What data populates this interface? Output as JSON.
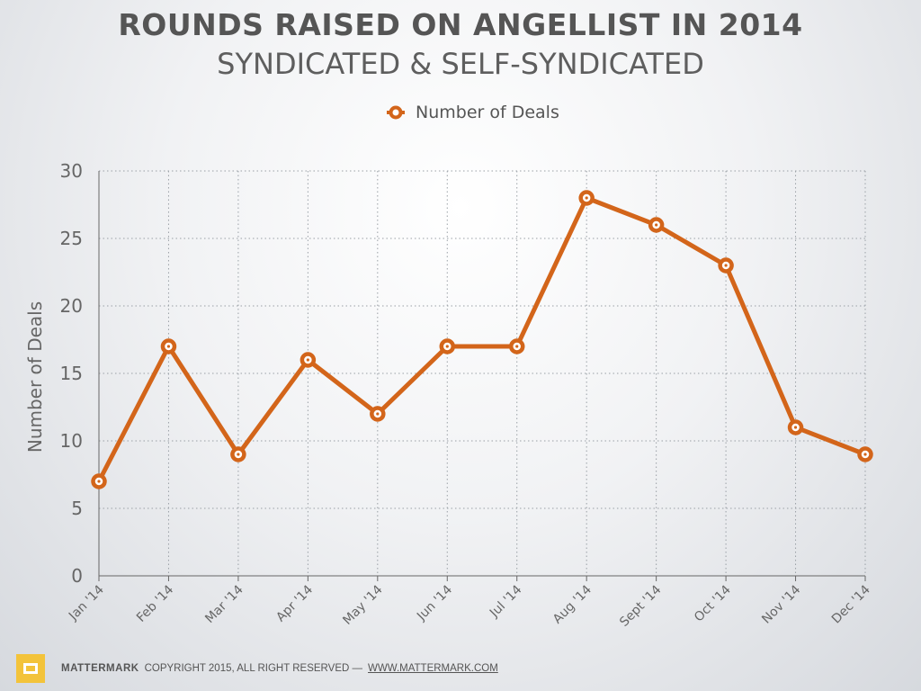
{
  "title": "ROUNDS RAISED ON ANGELLIST IN 2014",
  "subtitle": "SYNDICATED & SELF-SYNDICATED",
  "legend": {
    "label": "Number of Deals"
  },
  "colors": {
    "series": "#d3651a",
    "grid": "#9aa0a6",
    "axis": "#666666"
  },
  "chart_data": {
    "type": "line",
    "categories": [
      "Jan '14",
      "Feb '14",
      "Mar '14",
      "Apr '14",
      "May '14",
      "Jun '14",
      "Jul '14",
      "Aug '14",
      "Sept '14",
      "Oct '14",
      "Nov '14",
      "Dec '14"
    ],
    "series": [
      {
        "name": "Number of Deals",
        "values": [
          7,
          17,
          9,
          16,
          12,
          17,
          17,
          28,
          26,
          23,
          11,
          9
        ]
      }
    ],
    "ylabel": "Number of Deals",
    "ylim": [
      0,
      30
    ],
    "yticks": [
      0,
      5,
      10,
      15,
      20,
      25,
      30
    ],
    "grid": true,
    "legend_position": "top-center"
  },
  "footer": {
    "brand": "MATTERMARK",
    "copyright": "COPYRIGHT 2015, ALL RIGHT RESERVED —",
    "link": "WWW.MATTERMARK.COM"
  }
}
